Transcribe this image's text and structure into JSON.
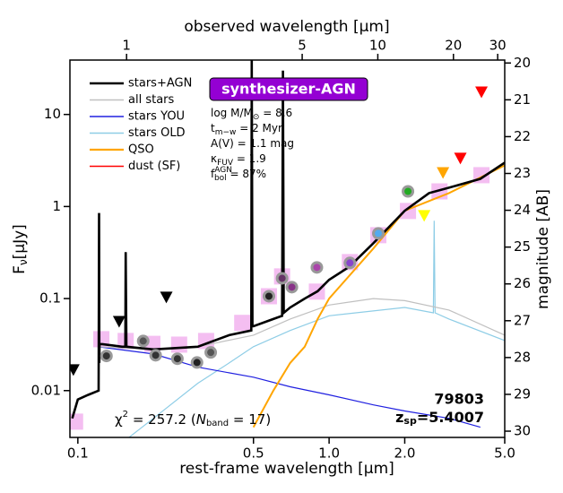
{
  "chart_data": {
    "type": "sed",
    "xlabel": "rest-frame wavelength [μm]",
    "x2label": "observed wavelength [μm]",
    "ylabel": {
      "main": "F",
      "sub": "ν",
      "rest": "[μJy]"
    },
    "y2label": "magnitude [AB]",
    "xlim": [
      0.093,
      5.0
    ],
    "log_x": true,
    "xticks": [
      0.1,
      0.5,
      {
        "value": 1,
        "label": "1.0"
      },
      {
        "value": 2,
        "label": "2.0"
      },
      {
        "value": 5,
        "label": "5.0"
      }
    ],
    "x2lim": [
      0.595,
      32.0
    ],
    "x2ticks": [
      1,
      5,
      10,
      20,
      30
    ],
    "ylim": [
      0.0031,
      39
    ],
    "log_y": true,
    "yticks": [
      0.01,
      0.1,
      1,
      10
    ],
    "y2lim": [
      19.92,
      30.17
    ],
    "y2ticks": [
      20,
      21,
      22,
      23,
      24,
      25,
      26,
      27,
      28,
      29,
      30
    ],
    "series": [
      {
        "name": "stars+AGN",
        "color": "#000000",
        "x": [
          0.095,
          0.1,
          0.11,
          0.121,
          0.1215,
          0.1218,
          0.122,
          0.125,
          0.15,
          0.1545,
          0.155,
          0.156,
          0.2,
          0.3,
          0.4,
          0.49,
          0.492,
          0.4955,
          0.5,
          0.6,
          0.65,
          0.655,
          0.66,
          0.7,
          0.8,
          0.9,
          1.0,
          1.2,
          1.5,
          2.0,
          2.5,
          3.0,
          4.0,
          5.0
        ],
        "values": [
          0.005,
          0.008,
          0.009,
          0.01,
          0.85,
          0.02,
          0.032,
          0.032,
          0.03,
          0.03,
          0.32,
          0.03,
          0.028,
          0.03,
          0.04,
          0.045,
          40,
          0.05,
          0.05,
          0.06,
          0.065,
          30,
          0.07,
          0.08,
          0.1,
          0.12,
          0.16,
          0.22,
          0.4,
          0.9,
          1.4,
          1.6,
          2.0,
          3.0
        ]
      },
      {
        "name": "all stars",
        "color": "#c0c0c0",
        "x": [
          0.12,
          0.2,
          0.3,
          0.5,
          0.7,
          1.0,
          1.5,
          2.0,
          3.0,
          5.0
        ],
        "values": [
          0.03,
          0.028,
          0.03,
          0.04,
          0.06,
          0.085,
          0.1,
          0.095,
          0.075,
          0.04
        ]
      },
      {
        "name": "stars YOU",
        "color": "#2020e0",
        "x": [
          0.12,
          0.2,
          0.3,
          0.5,
          0.7,
          1.0,
          1.5,
          2.0,
          3.0,
          4.0
        ],
        "values": [
          0.03,
          0.025,
          0.018,
          0.014,
          0.011,
          0.009,
          0.007,
          0.006,
          0.005,
          0.004
        ]
      },
      {
        "name": "stars OLD",
        "color": "#8ecde6",
        "x": [
          0.13,
          0.2,
          0.3,
          0.4,
          0.5,
          0.7,
          1.0,
          2.0,
          2.6,
          2.62,
          2.64,
          3.0,
          5.0
        ],
        "values": [
          0.002,
          0.005,
          0.012,
          0.02,
          0.03,
          0.045,
          0.065,
          0.08,
          0.07,
          0.7,
          0.07,
          0.06,
          0.035
        ]
      },
      {
        "name": "QSO",
        "color": "#ffa500",
        "x": [
          0.5,
          0.6,
          0.7,
          0.8,
          0.9,
          1.0,
          1.5,
          2.0,
          3.0,
          5.0
        ],
        "values": [
          0.004,
          0.01,
          0.02,
          0.03,
          0.06,
          0.1,
          0.35,
          0.9,
          1.4,
          2.8
        ]
      },
      {
        "name": "dust (SF)",
        "color": "#ff0000"
      }
    ],
    "model_photometry": {
      "color": "#f0a8ec",
      "x": [
        0.0975,
        0.124,
        0.155,
        0.198,
        0.253,
        0.324,
        0.451,
        0.576,
        0.65,
        0.894,
        1.21,
        1.57,
        2.06,
        2.75,
        4.04
      ],
      "values": [
        0.0046,
        0.0362,
        0.0346,
        0.0322,
        0.0316,
        0.0346,
        0.0544,
        0.106,
        0.174,
        0.119,
        0.249,
        0.488,
        0.894,
        1.46,
        2.19
      ]
    },
    "observed": {
      "x": [
        0.13,
        0.182,
        0.204,
        0.249,
        0.298,
        0.338,
        0.576,
        0.65,
        0.711,
        0.894,
        1.21,
        1.57,
        2.06
      ],
      "values": [
        0.0238,
        0.0346,
        0.0242,
        0.0222,
        0.0202,
        0.026,
        0.106,
        0.166,
        0.133,
        0.218,
        0.244,
        0.51,
        1.46
      ],
      "colors": [
        "#333333",
        "#555555",
        "#333333",
        "#333333",
        "#222222",
        "#555555",
        "#222222",
        "#663366",
        "#883388",
        "#aa44aa",
        "#8844cc",
        "#55aaee",
        "#22aa22"
      ]
    },
    "upper_limits": {
      "x": [
        0.096,
        0.146,
        0.225,
        2.39,
        2.84,
        3.33,
        4.04
      ],
      "values": [
        0.0169,
        0.0566,
        0.104,
        0.8,
        2.34,
        3.36,
        17.6
      ],
      "colors": [
        "#000000",
        "#000000",
        "#000000",
        "#ffff00",
        "#ffa500",
        "#ff0000",
        "#ff0000"
      ]
    },
    "badge": "synthesizer-AGN",
    "params": [
      {
        "main": "log M/M",
        "sub": "⊙",
        "rest": " = 8.6"
      },
      {
        "main": "t",
        "sub": "m−w",
        "rest": " = 2 Myr"
      },
      {
        "main": "A(V)",
        "rest": " = 1.1 mag"
      },
      {
        "main": "κ",
        "sub": "FUV",
        "rest": " = 1.9"
      },
      {
        "main": "f",
        "sub": "bol",
        "sup": "AGN",
        "rest": " = 87%"
      }
    ],
    "chi2": {
      "main": "χ",
      "sup": "2",
      "mid": " = 257.2 (",
      "n": "N",
      "sub": "band",
      "rest": " = 17)"
    },
    "object_id": "79803",
    "redshift": {
      "main": "z",
      "sub": "sp",
      "rest": "=5.4007"
    }
  }
}
